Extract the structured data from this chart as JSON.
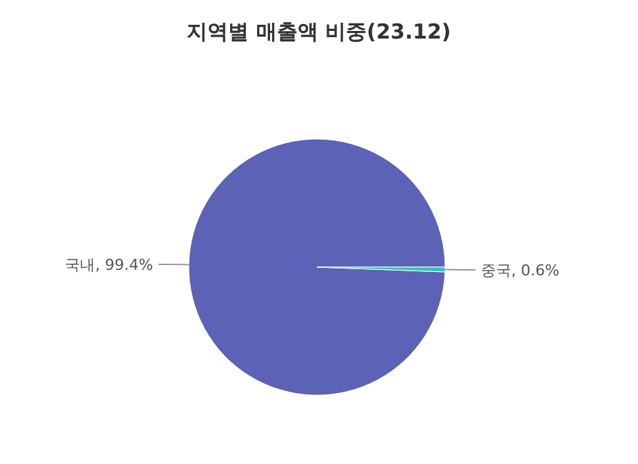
{
  "chart_data": {
    "type": "pie",
    "title": "지역별 매출액 비중(23.12)",
    "categories": [
      "국내",
      "중국"
    ],
    "values": [
      99.4,
      0.6
    ],
    "value_labels": [
      ", 99.4%",
      ", 0.6%"
    ],
    "colors": [
      "#5c62b5",
      "#2ec4b6"
    ]
  }
}
